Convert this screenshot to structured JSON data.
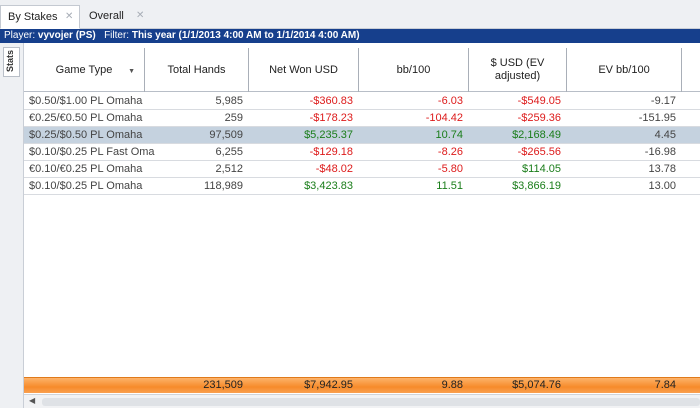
{
  "tabs": [
    {
      "label": "By Stakes",
      "active": true
    },
    {
      "label": "Overall",
      "active": false
    }
  ],
  "tab_close_glyph": "✕",
  "filter_bar": {
    "player_label": "Player:",
    "player_value": "vyvojer (PS)",
    "filter_label": "Filter:",
    "filter_value": "This year (1/1/2013 4:00 AM to 1/1/2014 4:00 AM)"
  },
  "side_tab": {
    "label": "Stats"
  },
  "columns": [
    {
      "key": "game_type",
      "label": "Game Type",
      "sortable": true
    },
    {
      "key": "total_hands",
      "label": "Total Hands"
    },
    {
      "key": "net_won_usd",
      "label": "Net Won USD"
    },
    {
      "key": "bb_100",
      "label": "bb/100"
    },
    {
      "key": "usd_ev_adjusted",
      "label": "$ USD (EV adjusted)"
    },
    {
      "key": "ev_bb_100",
      "label": "EV bb/100"
    }
  ],
  "rows": [
    {
      "game_type": "$0.50/$1.00 PL Omaha",
      "total_hands": "5,985",
      "net_won_usd": "-$360.83",
      "bb_100": "-6.03",
      "usd_ev_adjusted": "-$549.05",
      "ev_bb_100": "-9.17",
      "selected": false
    },
    {
      "game_type": "€0.25/€0.50 PL Omaha",
      "total_hands": "259",
      "net_won_usd": "-$178.23",
      "bb_100": "-104.42",
      "usd_ev_adjusted": "-$259.36",
      "ev_bb_100": "-151.95",
      "selected": false
    },
    {
      "game_type": "$0.25/$0.50 PL Omaha",
      "total_hands": "97,509",
      "net_won_usd": "$5,235.37",
      "bb_100": "10.74",
      "usd_ev_adjusted": "$2,168.49",
      "ev_bb_100": "4.45",
      "selected": true
    },
    {
      "game_type": "$0.10/$0.25 PL Fast Oma",
      "total_hands": "6,255",
      "net_won_usd": "-$129.18",
      "bb_100": "-8.26",
      "usd_ev_adjusted": "-$265.56",
      "ev_bb_100": "-16.98",
      "selected": false
    },
    {
      "game_type": "€0.10/€0.25 PL Omaha",
      "total_hands": "2,512",
      "net_won_usd": "-$48.02",
      "bb_100": "-5.80",
      "usd_ev_adjusted": "$114.05",
      "ev_bb_100": "13.78",
      "selected": false
    },
    {
      "game_type": "$0.10/$0.25 PL Omaha",
      "total_hands": "118,989",
      "net_won_usd": "$3,423.83",
      "bb_100": "11.51",
      "usd_ev_adjusted": "$3,866.19",
      "ev_bb_100": "13.00",
      "selected": false
    }
  ],
  "totals": {
    "total_hands": "231,509",
    "net_won_usd": "$7,942.95",
    "bb_100": "9.88",
    "usd_ev_adjusted": "$5,074.76",
    "ev_bb_100": "7.84"
  },
  "colors": {
    "negative": "#dd1b1b",
    "positive": "#1a7d1a",
    "filter_bar_bg": "#163f8c",
    "selected_row_bg": "#c5d2df",
    "totals_bg": "#f78b2a"
  }
}
